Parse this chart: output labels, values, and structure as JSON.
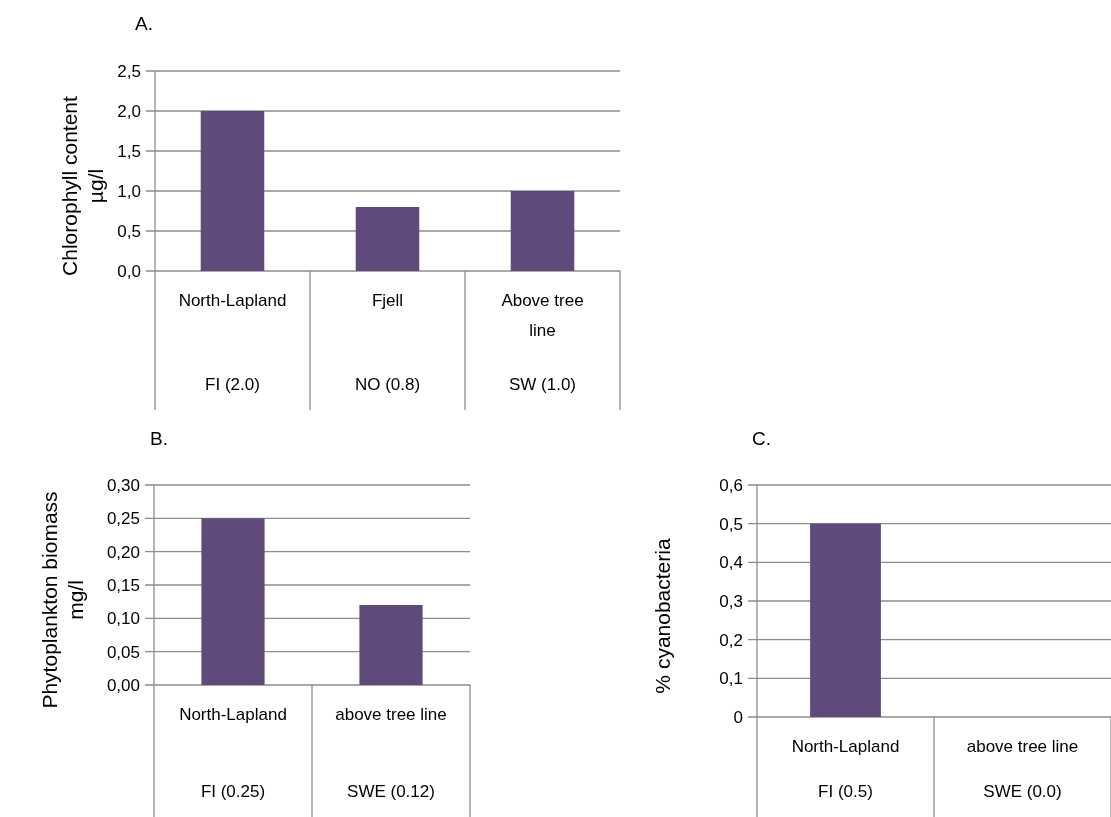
{
  "chart_data": [
    {
      "type": "bar",
      "title": "A.",
      "ylabel": "Chlorophyll content µg/l",
      "categories": [
        "North-Lapland",
        "Fjell",
        "Above tree line"
      ],
      "values": [
        2.0,
        0.8,
        1.0
      ],
      "color": "#604a7b",
      "ylim": [
        0,
        2.5
      ],
      "yticks": [
        {
          "value": 0,
          "label": "0,0"
        },
        {
          "value": 0.5,
          "label": "0,5"
        },
        {
          "value": 1.0,
          "label": "1,0"
        },
        {
          "value": 1.5,
          "label": "1,5"
        },
        {
          "value": 2.0,
          "label": "2,0"
        },
        {
          "value": 2.5,
          "label": "2,5"
        }
      ],
      "grid": "y",
      "annotations": [
        "FI (2.0)",
        "NO (0.8)",
        "SW (1.0)"
      ]
    },
    {
      "type": "bar",
      "title": "B.",
      "ylabel": "Phytoplankton biomass mg/l",
      "categories": [
        "North-Lapland",
        "above tree line"
      ],
      "values": [
        0.25,
        0.12
      ],
      "color": "#604a7b",
      "ylim": [
        0,
        0.3
      ],
      "yticks": [
        {
          "value": 0,
          "label": "0,00"
        },
        {
          "value": 0.05,
          "label": "0,05"
        },
        {
          "value": 0.1,
          "label": "0,10"
        },
        {
          "value": 0.15,
          "label": "0,15"
        },
        {
          "value": 0.2,
          "label": "0,20"
        },
        {
          "value": 0.25,
          "label": "0,25"
        },
        {
          "value": 0.3,
          "label": "0,30"
        }
      ],
      "grid": "y",
      "annotations": [
        "FI (0.25)",
        "SWE (0.12)"
      ]
    },
    {
      "type": "bar",
      "title": "C.",
      "ylabel": "% cyanobacteria",
      "categories": [
        "North-Lapland",
        "above tree line"
      ],
      "values": [
        0.5,
        0.0
      ],
      "color": "#604a7b",
      "ylim": [
        0,
        0.6
      ],
      "yticks": [
        0,
        {
          "value": 0.1,
          "label": "0,1"
        },
        {
          "value": 0.2,
          "label": "0,2"
        },
        {
          "value": 0.3,
          "label": "0,3"
        },
        {
          "value": 0.4,
          "label": "0,4"
        },
        {
          "value": 0.5,
          "label": "0,5"
        },
        {
          "value": 0.6,
          "label": "0,6"
        }
      ],
      "grid": "y",
      "annotations": [
        "FI (0.5)",
        "SWE (0.0)"
      ]
    }
  ]
}
